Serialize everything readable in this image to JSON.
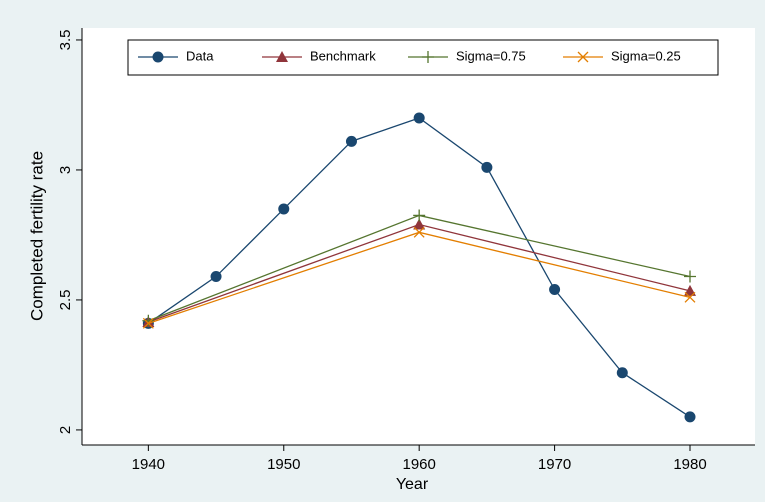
{
  "chart_data": {
    "type": "line",
    "xlabel": "Year",
    "ylabel": "Completed fertility rate",
    "xlim": [
      1935.1,
      1984.8
    ],
    "xticks": [
      1940,
      1950,
      1960,
      1970,
      1980
    ],
    "ylim": [
      1.942,
      3.546
    ],
    "yticks": [
      2,
      2.5,
      3,
      3.5
    ],
    "legend": "top",
    "series": [
      {
        "name": "Data",
        "color": "#1a476f",
        "marker": "circle",
        "x": [
          1940,
          1945,
          1950,
          1955,
          1960,
          1965,
          1970,
          1975,
          1980
        ],
        "values": [
          2.41,
          2.59,
          2.85,
          3.11,
          3.2,
          3.01,
          2.54,
          2.22,
          2.05
        ]
      },
      {
        "name": "Benchmark",
        "color": "#90353b",
        "marker": "triangle",
        "x": [
          1940,
          1960,
          1980
        ],
        "values": [
          2.415,
          2.79,
          2.535
        ]
      },
      {
        "name": "Sigma=0.75",
        "color": "#55752f",
        "marker": "plus",
        "x": [
          1940,
          1960,
          1980
        ],
        "values": [
          2.42,
          2.825,
          2.59
        ]
      },
      {
        "name": "Sigma=0.25",
        "color": "#e37e00",
        "marker": "cross",
        "x": [
          1940,
          1960,
          1980
        ],
        "values": [
          2.41,
          2.76,
          2.51
        ]
      }
    ]
  }
}
